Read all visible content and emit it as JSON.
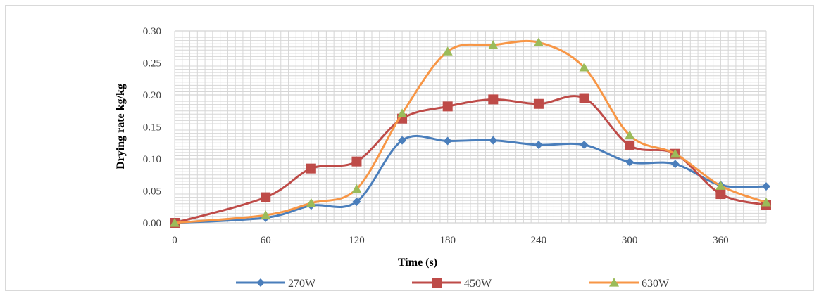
{
  "chart_data": {
    "type": "line",
    "title": "",
    "xlabel": "Time (s)",
    "ylabel": "Drying rate kg/kg",
    "xlim": [
      0,
      390
    ],
    "ylim": [
      0,
      0.3
    ],
    "x_ticks": [
      "0",
      "60",
      "120",
      "180",
      "240",
      "300",
      "360"
    ],
    "y_ticks": [
      "0.00",
      "0.05",
      "0.10",
      "0.15",
      "0.20",
      "0.25",
      "0.30"
    ],
    "grid": true,
    "legend_position": "bottom",
    "smooth_lines": true,
    "x": [
      0,
      60,
      90,
      120,
      150,
      180,
      210,
      240,
      270,
      300,
      330,
      360,
      390
    ],
    "series": [
      {
        "name": "270W",
        "color": "#4a7ebb",
        "marker": "diamond",
        "values": [
          0.0,
          0.008,
          0.027,
          0.033,
          0.129,
          0.128,
          0.129,
          0.122,
          0.122,
          0.095,
          0.092,
          0.059,
          0.057
        ]
      },
      {
        "name": "450W",
        "color": "#be4b48",
        "marker": "square",
        "values": [
          0.0,
          0.04,
          0.085,
          0.096,
          0.163,
          0.182,
          0.193,
          0.186,
          0.195,
          0.121,
          0.108,
          0.045,
          0.028
        ]
      },
      {
        "name": "630W",
        "color": "#f79646",
        "marker_color": "#9bbb59",
        "marker": "triangle",
        "values": [
          0.0,
          0.012,
          0.031,
          0.053,
          0.171,
          0.268,
          0.278,
          0.282,
          0.243,
          0.137,
          0.108,
          0.058,
          0.032
        ]
      }
    ]
  }
}
